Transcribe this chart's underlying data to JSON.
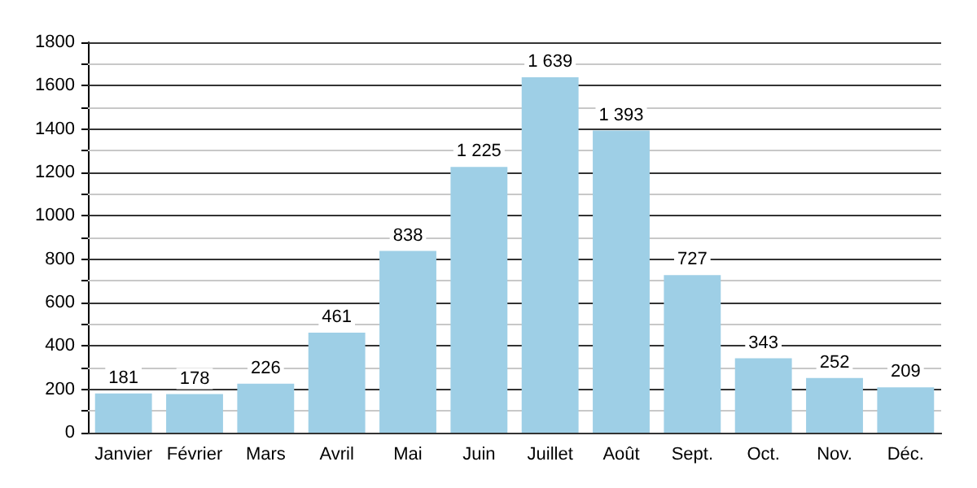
{
  "chart_data": {
    "type": "bar",
    "categories": [
      "Janvier",
      "Février",
      "Mars",
      "Avril",
      "Mai",
      "Juin",
      "Juillet",
      "Août",
      "Sept.",
      "Oct.",
      "Nov.",
      "Déc."
    ],
    "values": [
      181,
      178,
      226,
      461,
      838,
      1225,
      1639,
      1393,
      727,
      343,
      252,
      209
    ],
    "value_labels": [
      "181",
      "178",
      "226",
      "461",
      "838",
      "1 225",
      "1 639",
      "1 393",
      "727",
      "343",
      "252",
      "209"
    ],
    "color": "#9ecfe6",
    "ylim": [
      0,
      1800
    ],
    "yticks": [
      0,
      {
        "value": 100,
        "label": null
      },
      200,
      {
        "value": 300,
        "label": null
      },
      400,
      {
        "value": 500,
        "label": null
      },
      600,
      {
        "value": 700,
        "label": null
      },
      800,
      {
        "value": 900,
        "label": null
      },
      1000,
      {
        "value": 1100,
        "label": null
      },
      1200,
      {
        "value": 1300,
        "label": null
      },
      1400,
      {
        "value": 1500,
        "label": null
      },
      1600,
      {
        "value": 1700,
        "label": null
      },
      1800
    ],
    "grid": true
  }
}
